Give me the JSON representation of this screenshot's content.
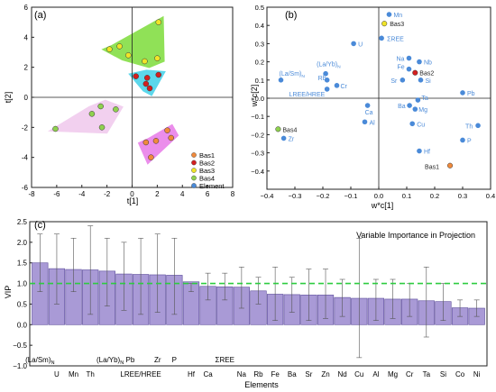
{
  "chart_data": [
    {
      "panel": "(a)",
      "type": "scatter",
      "xlabel": "t[1]",
      "ylabel": "t[2]",
      "xlim": [
        -8,
        8
      ],
      "ylim": [
        -6,
        6
      ],
      "xticks": [
        -8,
        -6,
        -4,
        -2,
        0,
        2,
        4,
        6,
        8
      ],
      "yticks": [
        -6,
        -4,
        -2,
        0,
        2,
        4,
        6
      ],
      "legend_position": "bottom-right",
      "series": [
        {
          "name": "Bas1",
          "color": "#f08a3c",
          "points": [
            [
              1.1,
              -3.0
            ],
            [
              1.9,
              -2.9
            ],
            [
              2.8,
              -2.2
            ],
            [
              3.1,
              -2.7
            ],
            [
              1.5,
              -4.0
            ]
          ]
        },
        {
          "name": "Bas2",
          "color": "#d41f1f",
          "points": [
            [
              0.3,
              1.4
            ],
            [
              1.2,
              1.3
            ],
            [
              1.4,
              0.6
            ],
            [
              1.1,
              0.9
            ],
            [
              2.1,
              1.5
            ]
          ]
        },
        {
          "name": "Bas3",
          "color": "#f0e428",
          "points": [
            [
              -1.8,
              3.2
            ],
            [
              -1.0,
              3.4
            ],
            [
              -0.3,
              2.8
            ],
            [
              1.0,
              2.4
            ],
            [
              2.0,
              2.6
            ],
            [
              2.1,
              5.0
            ]
          ]
        },
        {
          "name": "Bas4",
          "color": "#8fd14f",
          "points": [
            [
              -6.1,
              -2.1
            ],
            [
              -3.2,
              -1.1
            ],
            [
              -2.5,
              -0.6
            ],
            [
              -1.3,
              -0.8
            ],
            [
              -2.4,
              -2.0
            ]
          ]
        }
      ],
      "legend": [
        "Bas1",
        "Bas2",
        "Bas3",
        "Bas4",
        "Element"
      ],
      "legend_colors": [
        "#f08a3c",
        "#d41f1f",
        "#f0e428",
        "#8fd14f",
        "#4a8ad8"
      ]
    },
    {
      "panel": "(b)",
      "type": "scatter",
      "xlabel": "w*c[1]",
      "ylabel": "w*c[2]",
      "xlim": [
        -0.4,
        0.4
      ],
      "ylim": [
        -0.5,
        0.5
      ],
      "xticks": [
        -0.4,
        -0.3,
        -0.2,
        -0.1,
        0,
        0.1,
        0.2,
        0.3,
        0.4
      ],
      "yticks": [
        -0.4,
        -0.3,
        -0.2,
        -0.1,
        0,
        0.1,
        0.2,
        0.3,
        0.4,
        0.5
      ],
      "points": [
        {
          "label": "Mn",
          "x": 0.037,
          "y": 0.46,
          "color": "#4a8ad8"
        },
        {
          "label": "Bas3",
          "x": 0.02,
          "y": 0.41,
          "color": "#f0e428"
        },
        {
          "label": "ΣREE",
          "x": 0.01,
          "y": 0.33,
          "color": "#4a8ad8"
        },
        {
          "label": "U",
          "x": -0.09,
          "y": 0.3,
          "color": "#4a8ad8"
        },
        {
          "label": "Na",
          "x": 0.108,
          "y": 0.22,
          "color": "#4a8ad8"
        },
        {
          "label": "Nb",
          "x": 0.145,
          "y": 0.2,
          "color": "#4a8ad8"
        },
        {
          "label": "Fe",
          "x": 0.108,
          "y": 0.16,
          "color": "#4a8ad8"
        },
        {
          "label": "Bas2",
          "x": 0.13,
          "y": 0.14,
          "color": "#d41f1f"
        },
        {
          "label": "Sr",
          "x": 0.085,
          "y": 0.1,
          "color": "#4a8ad8"
        },
        {
          "label": "Si",
          "x": 0.15,
          "y": 0.1,
          "color": "#4a8ad8"
        },
        {
          "label": "(La/Sm)N",
          "x": -0.35,
          "y": 0.1,
          "color": "#4a8ad8"
        },
        {
          "label": "(La/Yb)N",
          "x": -0.19,
          "y": 0.135,
          "color": "#4a8ad8"
        },
        {
          "label": "Rb",
          "x": -0.185,
          "y": 0.1,
          "color": "#4a8ad8"
        },
        {
          "label": "Cr",
          "x": -0.15,
          "y": 0.07,
          "color": "#4a8ad8"
        },
        {
          "label": "LREE/HREE",
          "x": -0.185,
          "y": 0.05,
          "color": "#4a8ad8"
        },
        {
          "label": "Pb",
          "x": 0.3,
          "y": 0.03,
          "color": "#4a8ad8"
        },
        {
          "label": "Ta",
          "x": 0.14,
          "y": -0.01,
          "color": "#4a8ad8"
        },
        {
          "label": "Ba",
          "x": 0.11,
          "y": -0.04,
          "color": "#4a8ad8"
        },
        {
          "label": "Mg",
          "x": 0.13,
          "y": -0.06,
          "color": "#4a8ad8"
        },
        {
          "label": "Ca",
          "x": -0.04,
          "y": -0.04,
          "color": "#4a8ad8"
        },
        {
          "label": "Al",
          "x": -0.05,
          "y": -0.13,
          "color": "#4a8ad8"
        },
        {
          "label": "Cu",
          "x": 0.12,
          "y": -0.14,
          "color": "#4a8ad8"
        },
        {
          "label": "Th",
          "x": 0.355,
          "y": -0.15,
          "color": "#4a8ad8"
        },
        {
          "label": "P",
          "x": 0.3,
          "y": -0.23,
          "color": "#4a8ad8"
        },
        {
          "label": "Hf",
          "x": 0.145,
          "y": -0.29,
          "color": "#4a8ad8"
        },
        {
          "label": "Bas1",
          "x": 0.255,
          "y": -0.37,
          "color": "#f08a3c"
        },
        {
          "label": "Bas4",
          "x": -0.36,
          "y": -0.17,
          "color": "#8fd14f"
        },
        {
          "label": "Zr",
          "x": -0.34,
          "y": -0.22,
          "color": "#4a8ad8"
        }
      ]
    },
    {
      "panel": "(c)",
      "type": "bar",
      "title": "Variable Importance in Projection",
      "xlabel": "Elements",
      "ylabel": "VIP",
      "ylim": [
        -1.0,
        2.5
      ],
      "yticks": [
        -1.0,
        -0.5,
        0,
        0.5,
        1.0,
        1.5,
        2.0,
        2.5
      ],
      "threshold": 1.0,
      "categories": [
        "(La/Sm)N",
        "U",
        "Mn",
        "Th",
        "(La/Yb)N",
        "Pb",
        "LREE/HREE",
        "Zr",
        "P",
        "Hf",
        "Ca",
        "ΣREE",
        "Na",
        "Rb",
        "Fe",
        "Ba",
        "Sr",
        "Zn",
        "Nd",
        "Cu",
        "Al",
        "Mg",
        "Cr",
        "Ta",
        "Si",
        "Co",
        "Ni"
      ],
      "values": [
        1.5,
        1.36,
        1.34,
        1.33,
        1.3,
        1.23,
        1.22,
        1.21,
        1.2,
        1.04,
        0.93,
        0.92,
        0.91,
        0.82,
        0.74,
        0.73,
        0.72,
        0.72,
        0.66,
        0.64,
        0.64,
        0.62,
        0.62,
        0.58,
        0.56,
        0.41,
        0.4
      ],
      "error_low": [
        0.8,
        0.5,
        0.8,
        0.25,
        0.45,
        0.35,
        0.25,
        0.3,
        0.25,
        0.8,
        0.6,
        0.6,
        0.4,
        0.5,
        0.1,
        0.3,
        0.1,
        0.15,
        0.2,
        -0.8,
        0.1,
        0.15,
        0.2,
        -0.3,
        0.1,
        0.2,
        0.2
      ],
      "error_high": [
        2.2,
        2.2,
        2.1,
        2.4,
        2.1,
        2.0,
        2.1,
        2.2,
        2.1,
        1.0,
        1.25,
        1.25,
        1.4,
        1.15,
        1.4,
        1.15,
        1.35,
        1.35,
        1.1,
        2.1,
        1.1,
        1.1,
        1.0,
        1.4,
        1.0,
        0.6,
        0.6
      ],
      "tick_label_rows": {
        "row1": [
          "(La/Sm)N",
          "(La/Yb)N Pb",
          "Zr",
          "P",
          "ΣREE"
        ],
        "row2": [
          "U",
          "Mn",
          "Th",
          "LREE/HREE",
          "Hf",
          "Ca",
          "Na",
          "Rb",
          "Fe",
          "Ba",
          "Sr",
          "Zn",
          "Nd",
          "Cu",
          "Al",
          "Mg",
          "Cr",
          "Ta",
          "Si",
          "Co",
          "Ni"
        ]
      }
    }
  ],
  "colors": {
    "axis": "#222222",
    "element_point": "#4a8ad8",
    "bar_fill": "#a99ad6",
    "bar_stroke": "#5a4a9a",
    "threshold_line": "#2ecc40",
    "hull_bas1": "#e879e8",
    "hull_bas2": "#3fd0e8",
    "hull_bas3": "#7ddc3a",
    "hull_bas4": "#f0c8ec"
  }
}
